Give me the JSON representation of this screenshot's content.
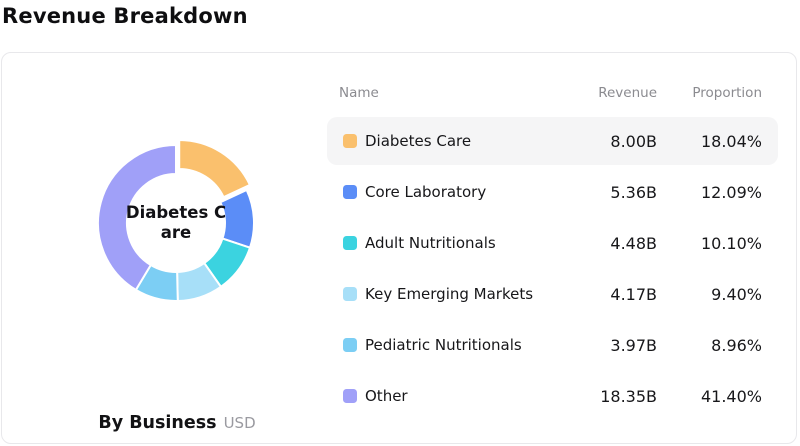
{
  "page": {
    "title": "Revenue Breakdown"
  },
  "chart_data": {
    "type": "pie",
    "subtype": "donut",
    "title": "By Business",
    "unit": "USD",
    "center_label": "Diabetes C\nare",
    "selected_index": 0,
    "legend_position": "right-table",
    "items": [
      {
        "name": "Diabetes Care",
        "revenue_billions": 8.0,
        "revenue_label": "8.00B",
        "proportion_pct": 18.04,
        "proportion_label": "18.04%",
        "color": "#FAC06D"
      },
      {
        "name": "Core Laboratory",
        "revenue_billions": 5.36,
        "revenue_label": "5.36B",
        "proportion_pct": 12.09,
        "proportion_label": "12.09%",
        "color": "#5B8DF7"
      },
      {
        "name": "Adult Nutritionals",
        "revenue_billions": 4.48,
        "revenue_label": "4.48B",
        "proportion_pct": 10.1,
        "proportion_label": "10.10%",
        "color": "#3BD3E0"
      },
      {
        "name": "Key Emerging Markets",
        "revenue_billions": 4.17,
        "revenue_label": "4.17B",
        "proportion_pct": 9.4,
        "proportion_label": "9.40%",
        "color": "#A7DFF8"
      },
      {
        "name": "Pediatric Nutritionals",
        "revenue_billions": 3.97,
        "revenue_label": "3.97B",
        "proportion_pct": 8.96,
        "proportion_label": "8.96%",
        "color": "#7CCEF4"
      },
      {
        "name": "Other",
        "revenue_billions": 18.35,
        "revenue_label": "18.35B",
        "proportion_pct": 41.4,
        "proportion_label": "41.40%",
        "color": "#A0A0F8"
      }
    ]
  },
  "table": {
    "headers": {
      "name": "Name",
      "revenue": "Revenue",
      "proportion": "Proportion"
    }
  },
  "caption": {
    "main": "By Business",
    "sub": "USD"
  }
}
